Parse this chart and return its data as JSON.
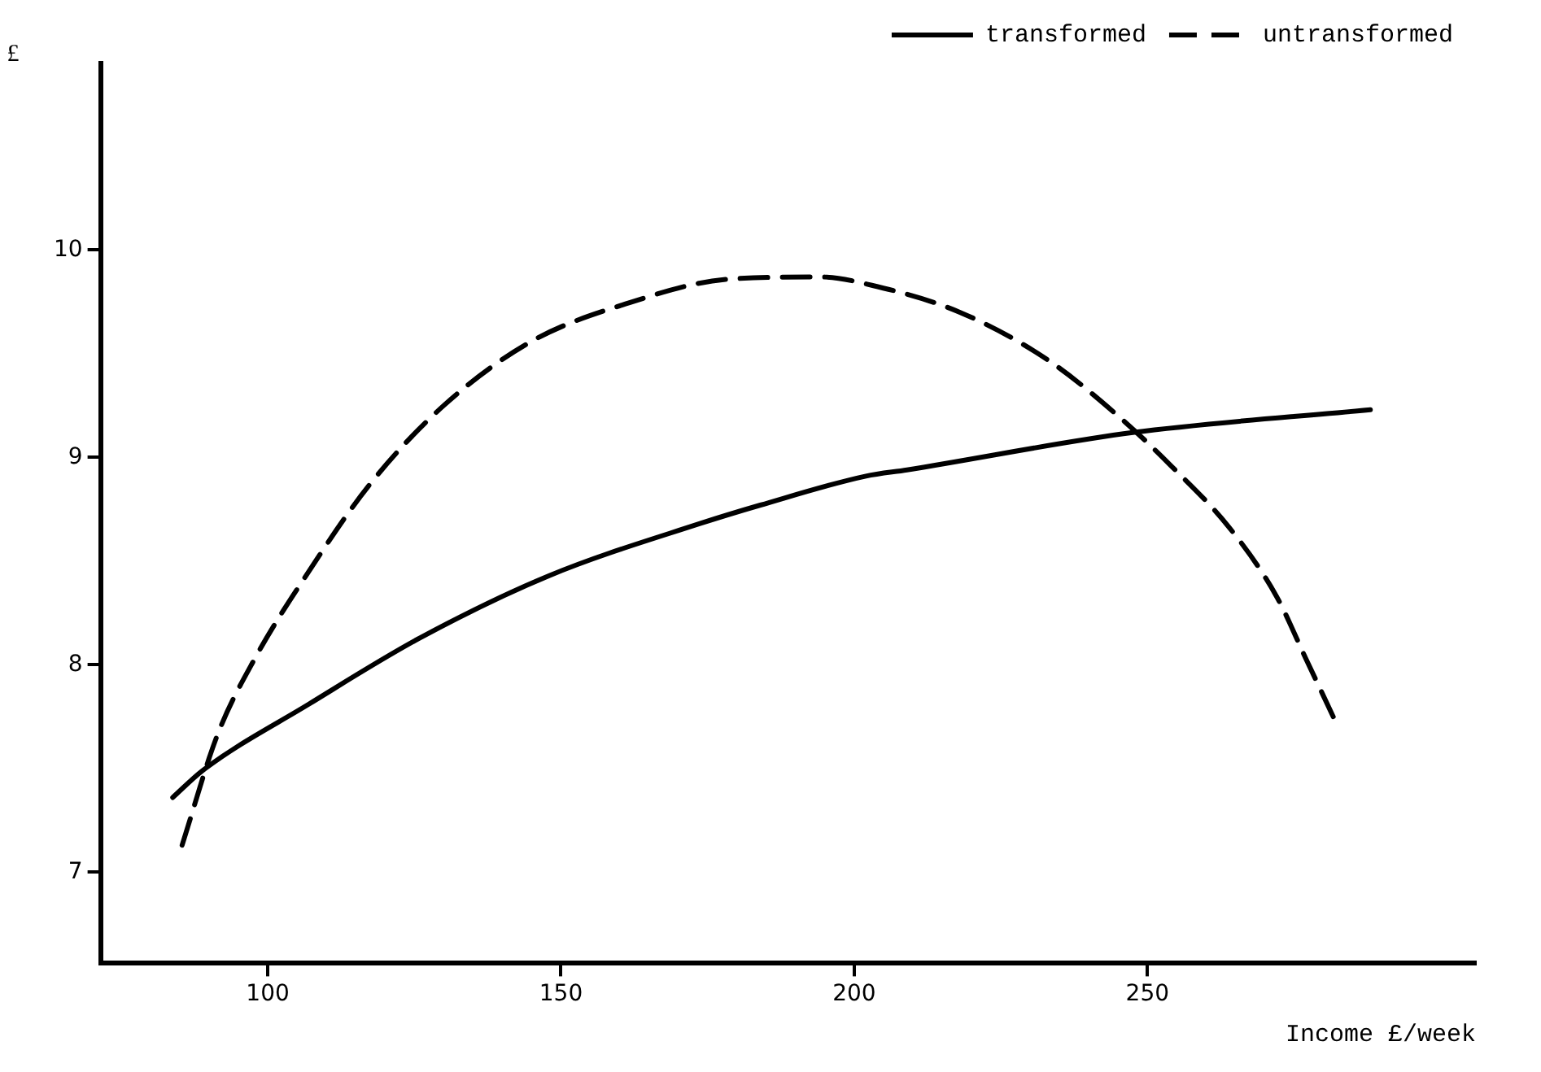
{
  "chart_data": {
    "type": "line",
    "xlabel": "Income £/week",
    "ylabel": "£",
    "xlim": [
      71.5,
      306
    ],
    "ylim": [
      6.56,
      10.9
    ],
    "xticks": [
      100,
      150,
      200,
      250
    ],
    "yticks": [
      7,
      8,
      9,
      10
    ],
    "grid": false,
    "legend": "top right",
    "marker": "none",
    "series": [
      {
        "name": "transformed",
        "color": "#000000",
        "line_style": "solid",
        "x": [
          83.8,
          88.9,
          107,
          126,
          148,
          173.6,
          184,
          202,
          209,
          247.5,
          288
        ],
        "values": [
          7.36,
          7.49,
          7.81,
          8.13,
          8.43,
          8.68,
          8.77,
          8.91,
          8.94,
          9.12,
          9.23
        ]
      },
      {
        "name": "untransformed",
        "color": "#000000",
        "line_style": "dashed",
        "x": [
          85.4,
          91.4,
          97.8,
          107,
          117.4,
          130,
          145,
          161,
          178.7,
          194.5,
          203,
          218,
          233,
          245,
          254,
          264,
          272,
          277,
          282
        ],
        "values": [
          7.13,
          7.66,
          8.03,
          8.45,
          8.87,
          9.25,
          9.56,
          9.74,
          9.86,
          9.87,
          9.83,
          9.7,
          9.47,
          9.2,
          8.96,
          8.66,
          8.33,
          8.03,
          7.73
        ]
      }
    ]
  }
}
